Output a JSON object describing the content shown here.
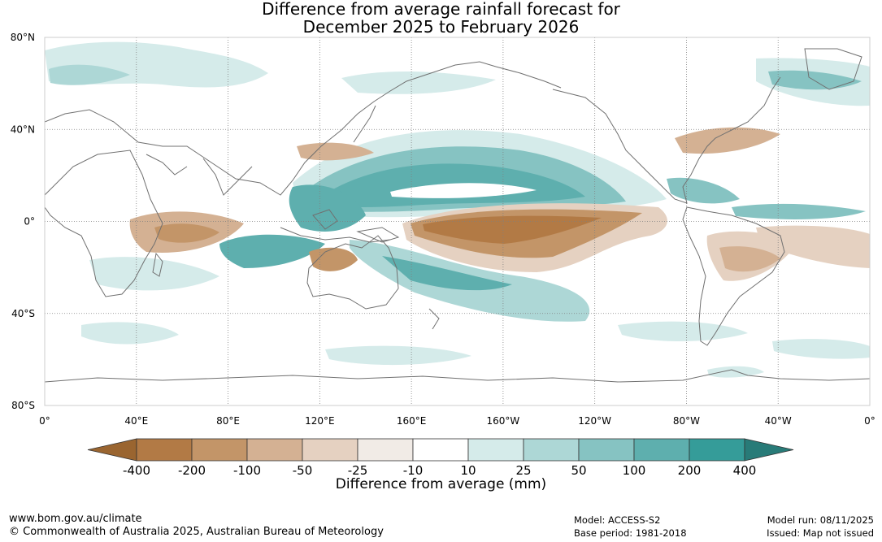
{
  "title": {
    "line1": "Difference from average rainfall forecast for",
    "line2": "December 2025 to February 2026"
  },
  "map": {
    "lat_labels": [
      "80°N",
      "40°N",
      "0°",
      "40°S",
      "80°S"
    ],
    "lat_values": [
      80,
      40,
      0,
      -40,
      -80
    ],
    "lon_labels": [
      "0°",
      "40°E",
      "80°E",
      "120°E",
      "160°E",
      "160°W",
      "120°W",
      "80°W",
      "40°W",
      "0°"
    ],
    "lon_values": [
      0,
      40,
      80,
      120,
      160,
      200,
      240,
      280,
      320,
      360
    ]
  },
  "legend": {
    "title": "Difference from average (mm)",
    "tick_labels": [
      "-400",
      "-200",
      "-100",
      "-50",
      "-25",
      "-10",
      "10",
      "25",
      "50",
      "100",
      "200",
      "400"
    ],
    "colors": [
      "#9a6530",
      "#b27a45",
      "#c39568",
      "#d4b193",
      "#e5d1c1",
      "#f1ebe6",
      "#ffffff",
      "#d5ebea",
      "#add7d6",
      "#86c3c2",
      "#5eafae",
      "#359c99",
      "#287b78"
    ]
  },
  "footer": {
    "url": "www.bom.gov.au/climate",
    "copyright": "© Commonwealth of Australia 2025, Australian Bureau of Meteorology",
    "model": "Model: ACCESS-S2",
    "base_period": "Base period: 1981-2018",
    "model_run": "Model run: 08/11/2025",
    "issued": "Issued: Map not issued"
  }
}
